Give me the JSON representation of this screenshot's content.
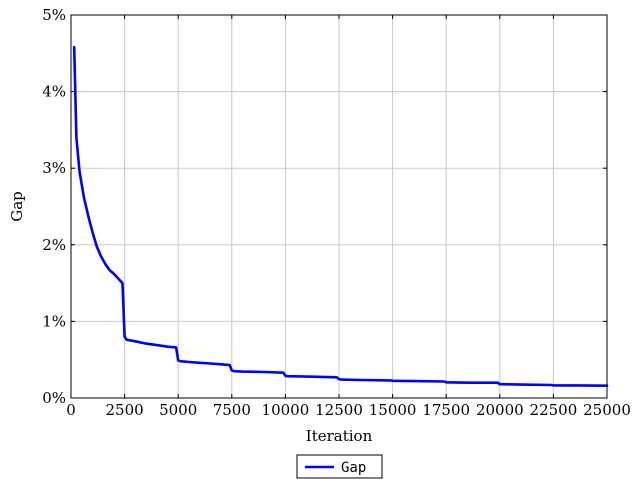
{
  "chart_data": {
    "type": "line",
    "xlabel": "Iteration",
    "ylabel": "Gap",
    "xlim": [
      0,
      25000
    ],
    "ylim": [
      0,
      5
    ],
    "x_ticks": [
      0,
      2500,
      5000,
      7500,
      10000,
      12500,
      15000,
      17500,
      20000,
      22500,
      25000
    ],
    "x_tick_labels": [
      "0",
      "2500",
      "5000",
      "7500",
      "10000",
      "12500",
      "15000",
      "17500",
      "20000",
      "22500",
      "25000"
    ],
    "y_ticks": [
      0,
      1,
      2,
      3,
      4,
      5
    ],
    "y_tick_labels": [
      "0%",
      "1%",
      "2%",
      "3%",
      "4%",
      "5%"
    ],
    "grid": true,
    "legend_position": "bottom-center",
    "series": [
      {
        "name": "Gap",
        "color": "#0000ff",
        "x": [
          150,
          250,
          400,
          600,
          800,
          1000,
          1200,
          1400,
          1600,
          1800,
          2000,
          2200,
          2400,
          2500,
          2600,
          3000,
          3500,
          4000,
          4500,
          4900,
          5000,
          5100,
          5500,
          6000,
          6500,
          7000,
          7400,
          7500,
          7600,
          8000,
          9000,
          9900,
          10000,
          10100,
          11000,
          12400,
          12500,
          12600,
          13500,
          14900,
          15000,
          16000,
          17400,
          17500,
          18500,
          19900,
          20000,
          20100,
          21000,
          22400,
          22500,
          23500,
          25000
        ],
        "y": [
          4.58,
          3.4,
          2.95,
          2.62,
          2.38,
          2.17,
          1.98,
          1.85,
          1.75,
          1.67,
          1.62,
          1.56,
          1.5,
          0.8,
          0.76,
          0.74,
          0.71,
          0.69,
          0.67,
          0.66,
          0.49,
          0.48,
          0.47,
          0.46,
          0.45,
          0.44,
          0.43,
          0.36,
          0.35,
          0.345,
          0.34,
          0.33,
          0.29,
          0.285,
          0.28,
          0.27,
          0.245,
          0.24,
          0.235,
          0.23,
          0.225,
          0.22,
          0.215,
          0.205,
          0.2,
          0.2,
          0.18,
          0.18,
          0.175,
          0.17,
          0.165,
          0.165,
          0.16
        ]
      }
    ]
  }
}
